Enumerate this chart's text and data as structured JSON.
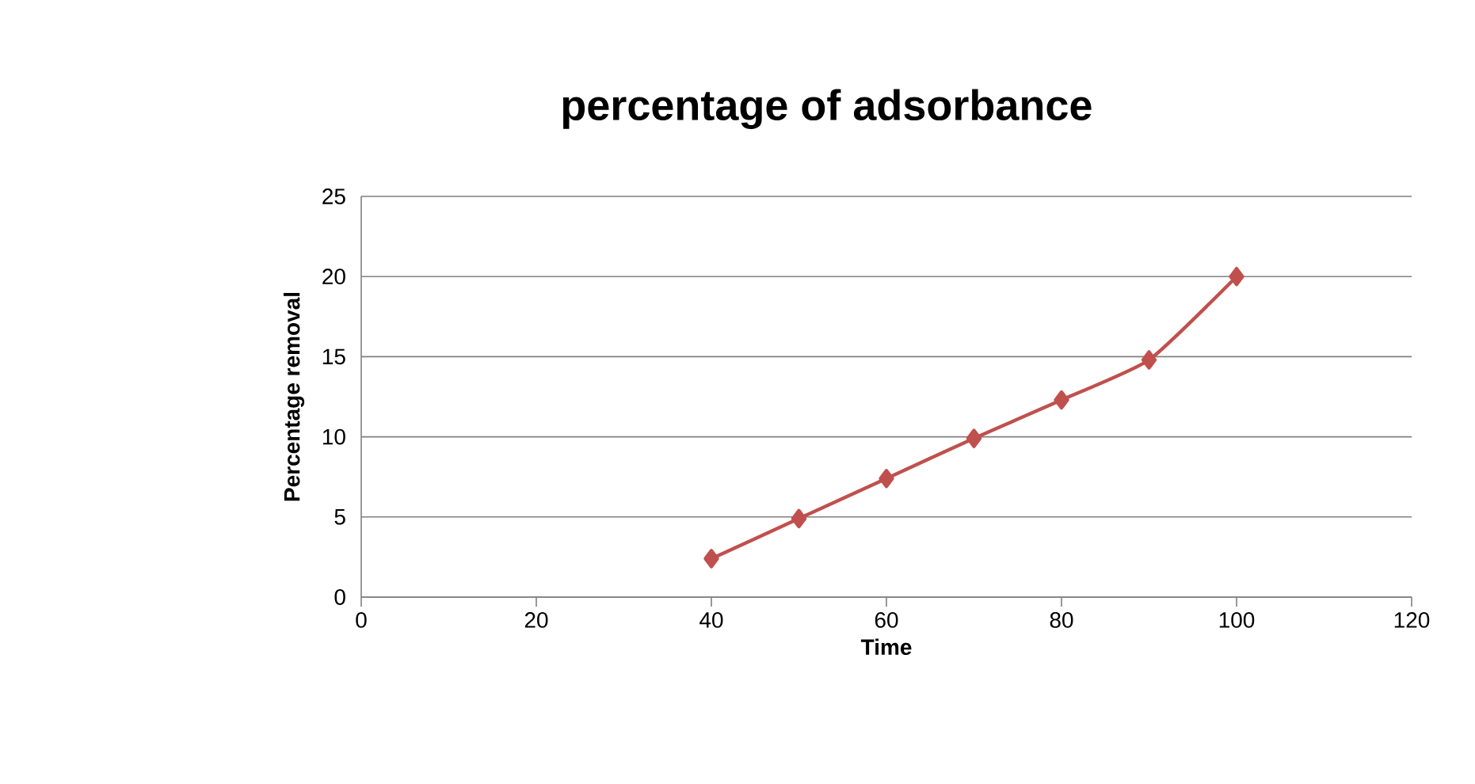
{
  "chart_data": {
    "type": "line",
    "title": "percentage of adsorbance",
    "xlabel": "Time",
    "ylabel": "Percentage removal",
    "x": [
      40,
      50,
      60,
      70,
      80,
      90,
      100
    ],
    "series": [
      {
        "color": "#c0504d",
        "values": [
          2.4,
          4.9,
          7.4,
          9.9,
          12.3,
          14.8,
          20
        ]
      }
    ],
    "xlim": [
      0,
      120
    ],
    "xticks": [
      0,
      20,
      40,
      60,
      80,
      100,
      120
    ],
    "ylim": [
      0,
      25
    ],
    "yticks": [
      0,
      5,
      10,
      15,
      20,
      25
    ],
    "grid": "y",
    "marker": "diamond",
    "line_style": "solid"
  }
}
